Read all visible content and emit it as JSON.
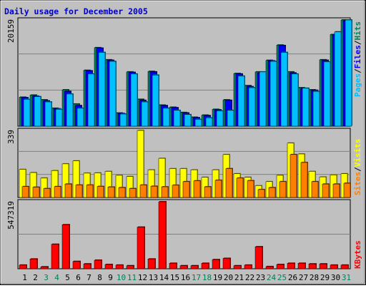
{
  "chart_data": [
    {
      "type": "bar",
      "title": "Daily usage for December 2005",
      "ylabel": "Pages / Files / Hits",
      "y_tick_label": "20159",
      "ylim": [
        0,
        20159
      ],
      "categories": [
        "1",
        "2",
        "3",
        "4",
        "5",
        "6",
        "7",
        "8",
        "9",
        "10",
        "11",
        "12",
        "13",
        "14",
        "15",
        "16",
        "17",
        "18",
        "19",
        "20",
        "21",
        "22",
        "23",
        "24",
        "25",
        "26",
        "27",
        "28",
        "29",
        "30",
        "31"
      ],
      "weekend_days": [
        "3",
        "4",
        "10",
        "11",
        "17",
        "18",
        "24",
        "25",
        "31"
      ],
      "series": [
        {
          "name": "Hits",
          "color": "#00805c",
          "values": [
            5500,
            5900,
            5000,
            3400,
            6900,
            4200,
            10600,
            14900,
            12600,
            2500,
            10300,
            5100,
            10400,
            4000,
            3600,
            2600,
            1700,
            2100,
            3200,
            5000,
            10000,
            7700,
            10300,
            12500,
            15400,
            10300,
            7300,
            6900,
            12600,
            17400,
            20159
          ]
        },
        {
          "name": "Files",
          "color": "#0000ff",
          "values": [
            5400,
            5700,
            4800,
            3300,
            6600,
            3900,
            10500,
            14800,
            12500,
            2400,
            10200,
            4900,
            10300,
            3900,
            3500,
            2500,
            1600,
            2000,
            3100,
            4900,
            9900,
            7500,
            10100,
            12400,
            15300,
            10100,
            7100,
            6800,
            12500,
            17300,
            20000
          ]
        },
        {
          "name": "Pages",
          "color": "#00c0ff",
          "values": [
            5100,
            5600,
            4600,
            3200,
            6100,
            3400,
            9900,
            14000,
            12300,
            2300,
            9900,
            4600,
            9700,
            3400,
            3000,
            2200,
            1300,
            1600,
            2900,
            3000,
            9500,
            7300,
            10300,
            12300,
            14000,
            9900,
            7200,
            6600,
            12200,
            17900,
            20159
          ]
        }
      ]
    },
    {
      "type": "bar",
      "ylabel": "Sites / Visits",
      "y_tick_label": "339",
      "ylim": [
        0,
        339
      ],
      "series": [
        {
          "name": "Visits",
          "color": "#ffff00",
          "values": [
            142,
            126,
            98,
            136,
            170,
            185,
            123,
            124,
            132,
            112,
            106,
            339,
            140,
            198,
            146,
            146,
            140,
            102,
            140,
            217,
            120,
            102,
            60,
            80,
            112,
            275,
            220,
            132,
            104,
            114,
            120
          ]
        },
        {
          "name": "Sites",
          "color": "#ff8000",
          "values": [
            55,
            52,
            45,
            55,
            68,
            63,
            63,
            56,
            53,
            50,
            45,
            63,
            57,
            54,
            62,
            80,
            84,
            54,
            87,
            146,
            98,
            85,
            40,
            50,
            80,
            217,
            177,
            80,
            68,
            68,
            72
          ]
        }
      ]
    },
    {
      "type": "bar",
      "ylabel": "KBytes",
      "y_tick_label": "547319",
      "ylim": [
        0,
        547319
      ],
      "series": [
        {
          "name": "KBytes",
          "color": "#ff0000",
          "values": [
            30000,
            80000,
            16000,
            200000,
            360000,
            60000,
            40000,
            70000,
            35000,
            30000,
            25000,
            340000,
            80000,
            547319,
            45000,
            25000,
            25000,
            45000,
            75000,
            85000,
            25000,
            30000,
            180000,
            18000,
            35000,
            45000,
            45000,
            40000,
            40000,
            30000,
            30000
          ]
        }
      ]
    }
  ]
}
